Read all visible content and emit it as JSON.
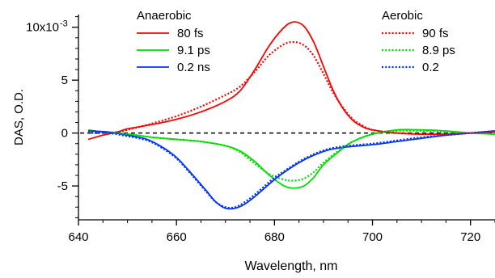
{
  "chart_data": {
    "type": "line",
    "title": "",
    "xlabel": "Wavelength, nm",
    "ylabel": "DAS, O.D.",
    "xlim": [
      640,
      725
    ],
    "ylim": [
      -8.2,
      11.2
    ],
    "x_ticks": [
      640,
      660,
      680,
      700,
      720
    ],
    "y_ticks": [
      -5,
      0,
      5,
      10
    ],
    "y_tick_labels": [
      "-5",
      "0",
      "5",
      "10x10"
    ],
    "y_exponent": "-3",
    "zero_line": true,
    "legend_groups": [
      {
        "title": "Anaerobic",
        "position": "top-left"
      },
      {
        "title": "Aerobic",
        "position": "top-right"
      }
    ],
    "series": [
      {
        "name": "80 fs",
        "group": 0,
        "color": "#ff0000",
        "dash": "solid",
        "points": [
          [
            642,
            -0.6
          ],
          [
            645,
            -0.2
          ],
          [
            648,
            0.1
          ],
          [
            650,
            0.4
          ],
          [
            655,
            0.8
          ],
          [
            660,
            1.3
          ],
          [
            665,
            2.0
          ],
          [
            670,
            3.0
          ],
          [
            673,
            4.0
          ],
          [
            676,
            6.0
          ],
          [
            679,
            8.3
          ],
          [
            682,
            10.0
          ],
          [
            684,
            10.5
          ],
          [
            686,
            10.1
          ],
          [
            688,
            8.6
          ],
          [
            690,
            6.3
          ],
          [
            692,
            4.0
          ],
          [
            694,
            2.3
          ],
          [
            696,
            1.2
          ],
          [
            698,
            0.6
          ],
          [
            700,
            0.3
          ],
          [
            705,
            0.0
          ],
          [
            710,
            -0.1
          ],
          [
            715,
            -0.1
          ],
          [
            720,
            0.0
          ],
          [
            725,
            0.1
          ]
        ]
      },
      {
        "name": "9.1 ps",
        "group": 0,
        "color": "#00dd00",
        "dash": "solid",
        "points": [
          [
            642,
            0.3
          ],
          [
            645,
            0.1
          ],
          [
            650,
            -0.1
          ],
          [
            655,
            -0.4
          ],
          [
            660,
            -0.6
          ],
          [
            665,
            -0.8
          ],
          [
            670,
            -1.2
          ],
          [
            673,
            -1.7
          ],
          [
            676,
            -2.7
          ],
          [
            679,
            -4.0
          ],
          [
            682,
            -5.0
          ],
          [
            684,
            -5.2
          ],
          [
            686,
            -5.0
          ],
          [
            688,
            -4.2
          ],
          [
            690,
            -3.0
          ],
          [
            693,
            -1.8
          ],
          [
            696,
            -0.8
          ],
          [
            700,
            -0.1
          ],
          [
            705,
            0.3
          ],
          [
            710,
            0.3
          ],
          [
            715,
            0.2
          ],
          [
            720,
            0.0
          ],
          [
            725,
            -0.1
          ]
        ]
      },
      {
        "name": "0.2 ns",
        "group": 0,
        "color": "#0033ff",
        "dash": "solid",
        "points": [
          [
            642,
            0.2
          ],
          [
            646,
            0.1
          ],
          [
            650,
            -0.2
          ],
          [
            654,
            -0.6
          ],
          [
            657,
            -1.3
          ],
          [
            660,
            -2.3
          ],
          [
            663,
            -3.8
          ],
          [
            666,
            -5.4
          ],
          [
            668,
            -6.5
          ],
          [
            670,
            -7.1
          ],
          [
            672,
            -7.1
          ],
          [
            674,
            -6.7
          ],
          [
            676,
            -6.0
          ],
          [
            678,
            -5.2
          ],
          [
            680,
            -4.4
          ],
          [
            682,
            -3.7
          ],
          [
            685,
            -2.8
          ],
          [
            688,
            -2.1
          ],
          [
            691,
            -1.6
          ],
          [
            695,
            -1.3
          ],
          [
            700,
            -1.1
          ],
          [
            705,
            -0.8
          ],
          [
            710,
            -0.5
          ],
          [
            715,
            -0.2
          ],
          [
            720,
            0.0
          ],
          [
            725,
            0.2
          ]
        ]
      },
      {
        "name": "90 fs",
        "group": 1,
        "color": "#ff0000",
        "dash": "dotted",
        "points": [
          [
            642,
            0.0
          ],
          [
            645,
            0.0
          ],
          [
            648,
            0.1
          ],
          [
            650,
            0.3
          ],
          [
            655,
            0.9
          ],
          [
            660,
            1.6
          ],
          [
            665,
            2.5
          ],
          [
            670,
            3.6
          ],
          [
            673,
            4.4
          ],
          [
            676,
            5.8
          ],
          [
            679,
            7.4
          ],
          [
            682,
            8.4
          ],
          [
            684,
            8.6
          ],
          [
            686,
            8.3
          ],
          [
            688,
            7.3
          ],
          [
            690,
            5.6
          ],
          [
            692,
            3.8
          ],
          [
            694,
            2.4
          ],
          [
            696,
            1.3
          ],
          [
            698,
            0.7
          ],
          [
            700,
            0.3
          ],
          [
            705,
            0.0
          ],
          [
            710,
            -0.1
          ],
          [
            715,
            -0.1
          ],
          [
            720,
            0.0
          ],
          [
            725,
            0.1
          ]
        ]
      },
      {
        "name": "8.9 ps",
        "group": 1,
        "color": "#00dd00",
        "dash": "dotted",
        "points": [
          [
            642,
            0.1
          ],
          [
            645,
            0.0
          ],
          [
            650,
            -0.1
          ],
          [
            655,
            -0.4
          ],
          [
            660,
            -0.6
          ],
          [
            665,
            -0.8
          ],
          [
            670,
            -1.2
          ],
          [
            673,
            -1.8
          ],
          [
            676,
            -2.9
          ],
          [
            679,
            -3.9
          ],
          [
            682,
            -4.4
          ],
          [
            684,
            -4.5
          ],
          [
            686,
            -4.3
          ],
          [
            688,
            -3.7
          ],
          [
            690,
            -2.8
          ],
          [
            693,
            -1.7
          ],
          [
            696,
            -0.8
          ],
          [
            700,
            -0.1
          ],
          [
            705,
            0.2
          ],
          [
            710,
            0.2
          ],
          [
            715,
            0.1
          ],
          [
            720,
            0.0
          ],
          [
            725,
            -0.1
          ]
        ]
      },
      {
        "name": "0.2",
        "group": 1,
        "color": "#0033ff",
        "dash": "dotted",
        "points": [
          [
            642,
            0.1
          ],
          [
            646,
            0.0
          ],
          [
            650,
            -0.3
          ],
          [
            654,
            -0.7
          ],
          [
            657,
            -1.4
          ],
          [
            660,
            -2.4
          ],
          [
            663,
            -3.9
          ],
          [
            666,
            -5.5
          ],
          [
            668,
            -6.5
          ],
          [
            670,
            -7.0
          ],
          [
            672,
            -7.0
          ],
          [
            674,
            -6.5
          ],
          [
            676,
            -5.8
          ],
          [
            678,
            -5.0
          ],
          [
            680,
            -4.2
          ],
          [
            682,
            -3.6
          ],
          [
            685,
            -2.7
          ],
          [
            688,
            -2.0
          ],
          [
            691,
            -1.5
          ],
          [
            695,
            -1.2
          ],
          [
            700,
            -1.0
          ],
          [
            705,
            -0.7
          ],
          [
            710,
            -0.4
          ],
          [
            715,
            -0.2
          ],
          [
            720,
            0.0
          ],
          [
            725,
            0.2
          ]
        ]
      }
    ]
  }
}
